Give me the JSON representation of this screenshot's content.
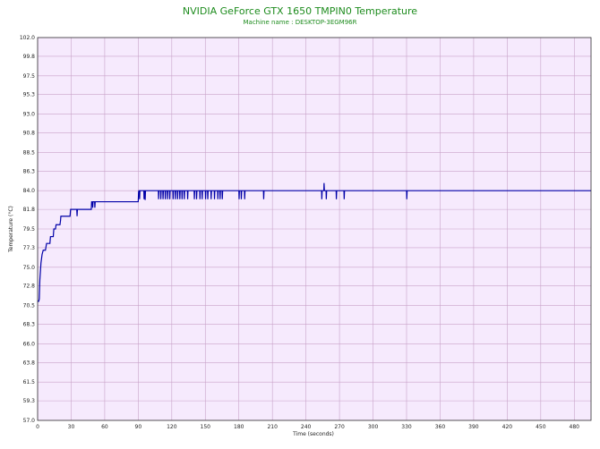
{
  "chart_data": {
    "type": "line",
    "title": "NVIDIA GeForce GTX 1650 TMPIN0 Temperature",
    "subtitle": "Machine name : DESKTOP-3EGM96R",
    "xlabel": "Time (seconds)",
    "ylabel": "Temperature (°C)",
    "xlim": [
      0,
      495
    ],
    "ylim": [
      57.0,
      102.0
    ],
    "x_ticks": [
      "0",
      "30",
      "60",
      "90",
      "120",
      "150",
      "180",
      "210",
      "240",
      "270",
      "300",
      "330",
      "360",
      "390",
      "420",
      "450",
      "480"
    ],
    "y_ticks": [
      "102.0",
      "99.8",
      "97.5",
      "95.3",
      "93.0",
      "90.8",
      "88.5",
      "86.3",
      "84.0",
      "81.8",
      "79.5",
      "77.3",
      "75.0",
      "72.8",
      "70.5",
      "68.3",
      "66.0",
      "63.8",
      "61.5",
      "59.3",
      "57.0"
    ],
    "grid": true,
    "plot_background": "#f6eafd",
    "grid_color": "#c9a2c9",
    "series": [
      {
        "color": "#0000a8",
        "points": [
          [
            0,
            71.0
          ],
          [
            1,
            71.0
          ],
          [
            1.5,
            71.3
          ],
          [
            2,
            73.5
          ],
          [
            2.5,
            74.5
          ],
          [
            3,
            75.5
          ],
          [
            4,
            76.5
          ],
          [
            5,
            77.0
          ],
          [
            7,
            77.0
          ],
          [
            8,
            77.8
          ],
          [
            11,
            77.8
          ],
          [
            11.5,
            78.6
          ],
          [
            14,
            78.6
          ],
          [
            14.5,
            79.5
          ],
          [
            16,
            79.5
          ],
          [
            16.5,
            80.0
          ],
          [
            20,
            80.0
          ],
          [
            20.5,
            80.5
          ],
          [
            20.8,
            81.0
          ],
          [
            29,
            81.0
          ],
          [
            29.5,
            81.8
          ],
          [
            35,
            81.8
          ],
          [
            35.3,
            81.0
          ],
          [
            35.6,
            81.8
          ],
          [
            48,
            81.8
          ],
          [
            48.3,
            82.7
          ],
          [
            49,
            82.7
          ],
          [
            49.3,
            82.0
          ],
          [
            49.6,
            82.7
          ],
          [
            51,
            82.7
          ],
          [
            51.2,
            82.0
          ],
          [
            51.5,
            82.7
          ],
          [
            90,
            82.7
          ],
          [
            90.3,
            83.8
          ],
          [
            90.6,
            84.0
          ],
          [
            91,
            84.0
          ],
          [
            91.2,
            83.0
          ],
          [
            91.5,
            84.0
          ],
          [
            95,
            84.0
          ],
          [
            95.2,
            83.0
          ],
          [
            95.5,
            84.0
          ],
          [
            96,
            84.0
          ],
          [
            96.2,
            82.9
          ],
          [
            96.5,
            84.0
          ],
          [
            108,
            84.0
          ],
          [
            108.2,
            83.0
          ],
          [
            108.5,
            84.0
          ],
          [
            110,
            84.0
          ],
          [
            110.2,
            83.0
          ],
          [
            110.5,
            84.0
          ],
          [
            112,
            84.0
          ],
          [
            112.2,
            83.0
          ],
          [
            112.5,
            84.0
          ],
          [
            114,
            84.0
          ],
          [
            114.2,
            83.0
          ],
          [
            114.5,
            84.0
          ],
          [
            116,
            84.0
          ],
          [
            116.2,
            83.0
          ],
          [
            116.5,
            84.0
          ],
          [
            118,
            84.0
          ],
          [
            118.2,
            83.0
          ],
          [
            118.5,
            84.0
          ],
          [
            121,
            84.0
          ],
          [
            121.2,
            83.0
          ],
          [
            121.5,
            84.0
          ],
          [
            123,
            84.0
          ],
          [
            123.2,
            83.0
          ],
          [
            123.5,
            84.0
          ],
          [
            125,
            84.0
          ],
          [
            125.2,
            83.0
          ],
          [
            125.5,
            84.0
          ],
          [
            127,
            84.0
          ],
          [
            127.2,
            83.0
          ],
          [
            127.5,
            84.0
          ],
          [
            129,
            84.0
          ],
          [
            129.2,
            83.0
          ],
          [
            129.5,
            84.0
          ],
          [
            131,
            84.0
          ],
          [
            131.2,
            83.0
          ],
          [
            131.5,
            84.0
          ],
          [
            134,
            84.0
          ],
          [
            134.2,
            83.0
          ],
          [
            134.5,
            84.0
          ],
          [
            140,
            84.0
          ],
          [
            140.2,
            83.0
          ],
          [
            140.5,
            84.0
          ],
          [
            142,
            84.0
          ],
          [
            142.2,
            83.0
          ],
          [
            142.5,
            84.0
          ],
          [
            145,
            84.0
          ],
          [
            145.2,
            83.0
          ],
          [
            145.5,
            84.0
          ],
          [
            147,
            84.0
          ],
          [
            147.2,
            83.0
          ],
          [
            147.5,
            84.0
          ],
          [
            150,
            84.0
          ],
          [
            150.2,
            83.0
          ],
          [
            150.5,
            84.0
          ],
          [
            152,
            84.0
          ],
          [
            152.2,
            83.0
          ],
          [
            152.5,
            84.0
          ],
          [
            155,
            84.0
          ],
          [
            155.2,
            83.0
          ],
          [
            155.5,
            84.0
          ],
          [
            158,
            84.0
          ],
          [
            158.2,
            83.0
          ],
          [
            158.5,
            84.0
          ],
          [
            161,
            84.0
          ],
          [
            161.2,
            83.0
          ],
          [
            161.5,
            84.0
          ],
          [
            163,
            84.0
          ],
          [
            163.2,
            83.0
          ],
          [
            163.5,
            84.0
          ],
          [
            165,
            84.0
          ],
          [
            165.2,
            83.0
          ],
          [
            165.5,
            84.0
          ],
          [
            180,
            84.0
          ],
          [
            180.2,
            83.0
          ],
          [
            180.5,
            84.0
          ],
          [
            182,
            84.0
          ],
          [
            182.2,
            83.0
          ],
          [
            182.5,
            84.0
          ],
          [
            185,
            84.0
          ],
          [
            185.2,
            83.0
          ],
          [
            185.5,
            84.0
          ],
          [
            202,
            84.0
          ],
          [
            202.2,
            83.0
          ],
          [
            202.5,
            84.0
          ],
          [
            254,
            84.0
          ],
          [
            254.2,
            83.0
          ],
          [
            254.5,
            84.0
          ],
          [
            256,
            84.0
          ],
          [
            256.2,
            84.9
          ],
          [
            256.5,
            84.0
          ],
          [
            258,
            84.0
          ],
          [
            258.2,
            83.0
          ],
          [
            258.5,
            84.0
          ],
          [
            267,
            84.0
          ],
          [
            267.2,
            83.0
          ],
          [
            267.5,
            84.0
          ],
          [
            274,
            84.0
          ],
          [
            274.2,
            83.0
          ],
          [
            274.5,
            84.0
          ],
          [
            330,
            84.0
          ],
          [
            330.2,
            83.0
          ],
          [
            330.5,
            84.0
          ],
          [
            495,
            84.0
          ]
        ]
      }
    ]
  }
}
